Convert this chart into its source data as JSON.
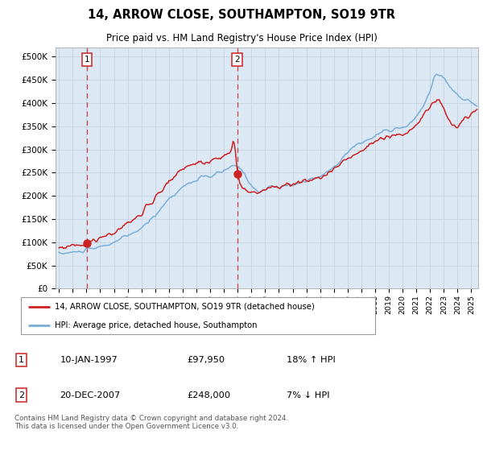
{
  "title": "14, ARROW CLOSE, SOUTHAMPTON, SO19 9TR",
  "subtitle": "Price paid vs. HM Land Registry's House Price Index (HPI)",
  "hpi_color": "#7aaed6",
  "price_color": "#cc2222",
  "bg_color": "#dce9f5",
  "plot_bg": "#ffffff",
  "grid_color": "#c0d0e0",
  "ylabel_ticks": [
    "£0",
    "£50K",
    "£100K",
    "£150K",
    "£200K",
    "£250K",
    "£300K",
    "£350K",
    "£400K",
    "£450K",
    "£500K"
  ],
  "ytick_vals": [
    0,
    50000,
    100000,
    150000,
    200000,
    250000,
    300000,
    350000,
    400000,
    450000,
    500000
  ],
  "ylim": [
    0,
    520000
  ],
  "xlim_start": 1994.75,
  "xlim_end": 2025.5,
  "purchase1_date": 1997.04,
  "purchase1_price": 97950,
  "purchase2_date": 2007.97,
  "purchase2_price": 248000,
  "legend_label1": "14, ARROW CLOSE, SOUTHAMPTON, SO19 9TR (detached house)",
  "legend_label2": "HPI: Average price, detached house, Southampton",
  "table_row1": [
    "1",
    "10-JAN-1997",
    "£97,950",
    "18% ↑ HPI"
  ],
  "table_row2": [
    "2",
    "20-DEC-2007",
    "£248,000",
    "7% ↓ HPI"
  ],
  "footer": "Contains HM Land Registry data © Crown copyright and database right 2024.\nThis data is licensed under the Open Government Licence v3.0."
}
